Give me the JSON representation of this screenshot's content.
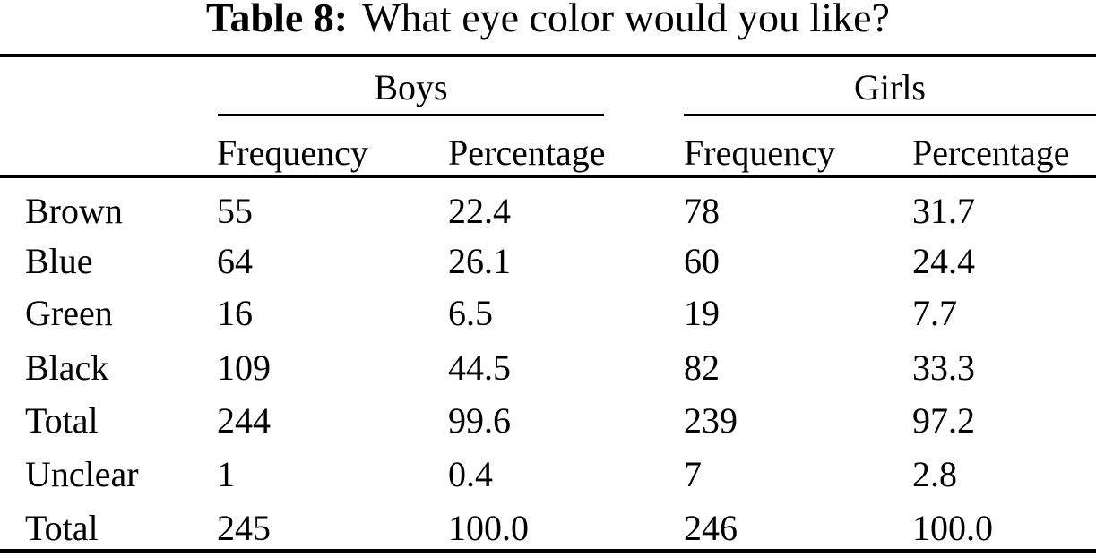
{
  "caption": {
    "label": "Table 8:",
    "title": "What eye color would you like?"
  },
  "columns": {
    "groups": [
      {
        "label": "Boys",
        "sub": [
          "Frequency",
          "Percentage"
        ]
      },
      {
        "label": "Girls",
        "sub": [
          "Frequency",
          "Percentage"
        ]
      }
    ]
  },
  "rows": [
    {
      "label": "Brown",
      "boys_frequency": "55",
      "boys_percentage": "22.4",
      "girls_frequency": "78",
      "girls_percentage": "31.7"
    },
    {
      "label": "Blue",
      "boys_frequency": "64",
      "boys_percentage": "26.1",
      "girls_frequency": "60",
      "girls_percentage": "24.4"
    },
    {
      "label": "Green",
      "boys_frequency": "16",
      "boys_percentage": "6.5",
      "girls_frequency": "19",
      "girls_percentage": "7.7"
    },
    {
      "label": "Black",
      "boys_frequency": "109",
      "boys_percentage": "44.5",
      "girls_frequency": "82",
      "girls_percentage": "33.3"
    },
    {
      "label": "Total",
      "boys_frequency": "244",
      "boys_percentage": "99.6",
      "girls_frequency": "239",
      "girls_percentage": "97.2"
    },
    {
      "label": "Unclear",
      "boys_frequency": "1",
      "boys_percentage": "0.4",
      "girls_frequency": "7",
      "girls_percentage": "2.8"
    },
    {
      "label": "Total",
      "boys_frequency": "245",
      "boys_percentage": "100.0",
      "girls_frequency": "246",
      "girls_percentage": "100.0"
    }
  ],
  "colors": {
    "text": "#000000",
    "background": "#ffffff",
    "rule": "#000000"
  }
}
